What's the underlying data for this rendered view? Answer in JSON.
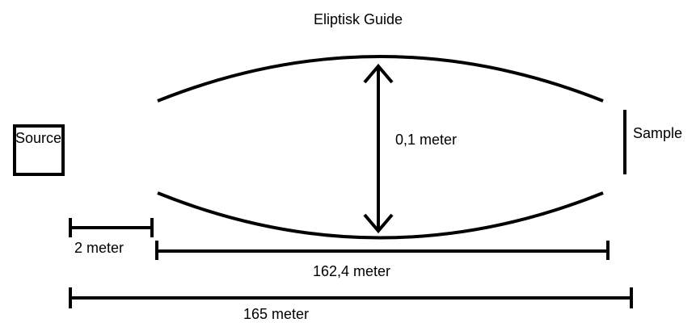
{
  "title": "Eliptisk Guide",
  "source_label": "Source",
  "sample_label": "Sample",
  "height_label": "0,1 meter",
  "gap_label": "2 meter",
  "guide_length_label": "162,4 meter",
  "total_length_label": "165 meter",
  "colors": {
    "stroke": "#000000",
    "background": "#ffffff"
  }
}
